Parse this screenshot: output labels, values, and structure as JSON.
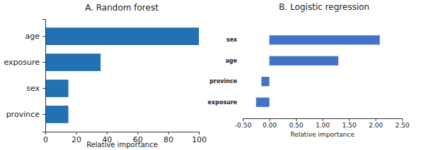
{
  "chart_data": [
    {
      "type": "bar",
      "orientation": "horizontal",
      "title": "A. Random forest",
      "xlabel": "Relative importance",
      "categories": [
        "age",
        "exposure",
        "sex",
        "province"
      ],
      "values": [
        100,
        36,
        15,
        15
      ],
      "color": "#2271b3",
      "xlim": [
        0,
        100
      ],
      "xticks": [
        0,
        20,
        40,
        60,
        80,
        100
      ]
    },
    {
      "type": "bar",
      "orientation": "horizontal",
      "title": "B. Logistic regression",
      "xlabel": "Relative importance",
      "categories": [
        "sex",
        "age",
        "province",
        "exposure"
      ],
      "values": [
        2.08,
        1.3,
        -0.15,
        -0.25
      ],
      "color": "#4472c4",
      "xlim": [
        -0.5,
        2.5
      ],
      "xticks": [
        {
          "value": -0.5,
          "label": "-0.50"
        },
        {
          "value": 0,
          "label": "0.00"
        },
        {
          "value": 0.5,
          "label": "0.50"
        },
        {
          "value": 1,
          "label": "1.00"
        },
        {
          "value": 1.5,
          "label": "1.50"
        },
        {
          "value": 2,
          "label": "2.00"
        },
        {
          "value": 2.5,
          "label": "2.50"
        }
      ]
    }
  ]
}
